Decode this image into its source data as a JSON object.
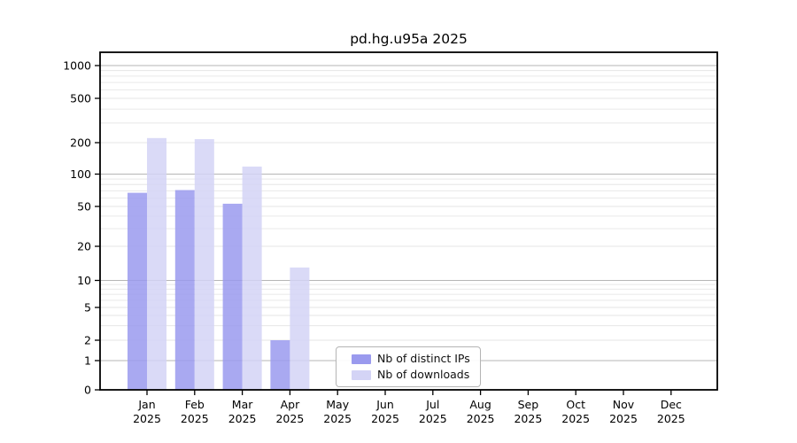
{
  "chart_data": {
    "type": "bar",
    "title": "pd.hg.u95a 2025",
    "categories": [
      "Jan 2025",
      "Feb 2025",
      "Mar 2025",
      "Apr 2025",
      "May 2025",
      "Jun 2025",
      "Jul 2025",
      "Aug 2025",
      "Sep 2025",
      "Oct 2025",
      "Nov 2025",
      "Dec 2025"
    ],
    "series": [
      {
        "name": "Nb of distinct IPs",
        "color": "#9a9aee",
        "values": [
          67,
          71,
          53,
          2,
          0,
          0,
          0,
          0,
          0,
          0,
          0,
          0
        ]
      },
      {
        "name": "Nb of downloads",
        "color": "#d4d4f6",
        "values": [
          220,
          215,
          118,
          13,
          0,
          0,
          0,
          0,
          0,
          0,
          0,
          0
        ]
      }
    ],
    "xlabel": "",
    "ylabel": "",
    "y_scale": "log above 1, linear segment 0-1 (symlog)",
    "y_ticks": [
      0,
      1,
      2,
      5,
      10,
      20,
      50,
      100,
      200,
      500,
      1000
    ],
    "ylim": [
      0,
      1300
    ],
    "grid": "horizontal, major decade lines darker plus faint log minor lines",
    "legend_position": "bottom-center inside plot",
    "colors": {
      "major_grid": "#b6b6b6",
      "minor_grid": "#e6e6e6",
      "spine": "#000000",
      "bar_opacity": 0.85
    }
  }
}
